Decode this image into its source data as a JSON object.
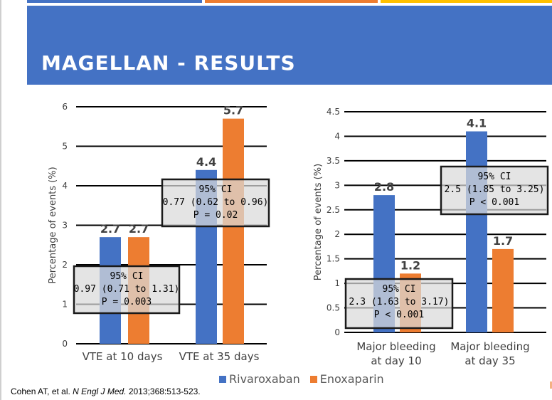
{
  "slide": {
    "title": "MAGELLAN - RESULTS",
    "top_strips": [
      {
        "color": "#4472c4"
      },
      {
        "color": "#ed7d31"
      },
      {
        "color": "#ffc000"
      }
    ],
    "citation_authors": "Cohen AT, et al. ",
    "citation_journal": "N Engl J Med.",
    "citation_rest": " 2013;368:513-523."
  },
  "legend": [
    {
      "label": "Rivaroxaban",
      "color": "#4472c4"
    },
    {
      "label": "Enoxaparin",
      "color": "#ed7d31"
    }
  ],
  "chart_data": [
    {
      "type": "bar",
      "categories": [
        "VTE at 10 days",
        "VTE at 35 days"
      ],
      "series": [
        {
          "name": "Rivaroxaban",
          "values": [
            2.7,
            4.4
          ],
          "color": "#4472c4"
        },
        {
          "name": "Enoxaparin",
          "values": [
            2.7,
            5.7
          ],
          "color": "#ed7d31"
        }
      ],
      "data_labels": [
        "2.7",
        "2.7",
        "4.4",
        "5.7"
      ],
      "ylabel": "Percentage of events (%)",
      "ylim": [
        0,
        6
      ],
      "yticks": [
        "0",
        "1",
        "2",
        "3",
        "4",
        "5",
        "6"
      ],
      "grid": true,
      "annotations": [
        {
          "lines": [
            "95% CI",
            "0.97 (0.71 to 1.31)",
            "P = 0.003"
          ]
        },
        {
          "lines": [
            "95% CI",
            "0.77 (0.62 to 0.96)",
            "P = 0.02"
          ]
        }
      ]
    },
    {
      "type": "bar",
      "categories": [
        "Major bleeding at day 10",
        "Major bleeding at day 35"
      ],
      "category_lines": [
        [
          "Major bleeding",
          "at day 10"
        ],
        [
          "Major bleeding",
          "at day 35"
        ]
      ],
      "series": [
        {
          "name": "Rivaroxaban",
          "values": [
            2.8,
            4.1
          ],
          "color": "#4472c4"
        },
        {
          "name": "Enoxaparin",
          "values": [
            1.2,
            1.7
          ],
          "color": "#ed7d31"
        }
      ],
      "data_labels": [
        "2.8",
        "1.2",
        "4.1",
        "1.7"
      ],
      "ylabel": "Percentage of events (%)",
      "ylim": [
        0,
        4.5
      ],
      "yticks": [
        "0",
        "0.5",
        "1",
        "1.5",
        "2",
        "2.5",
        "3",
        "3.5",
        "4",
        "4.5"
      ],
      "grid": true,
      "annotations": [
        {
          "lines": [
            "95% CI",
            "2.3 (1.63 to 3.17)",
            "P < 0.001"
          ]
        },
        {
          "lines": [
            "95% CI",
            "2.5 (1.85 to 3.25)",
            "P < 0.001"
          ]
        }
      ]
    }
  ]
}
